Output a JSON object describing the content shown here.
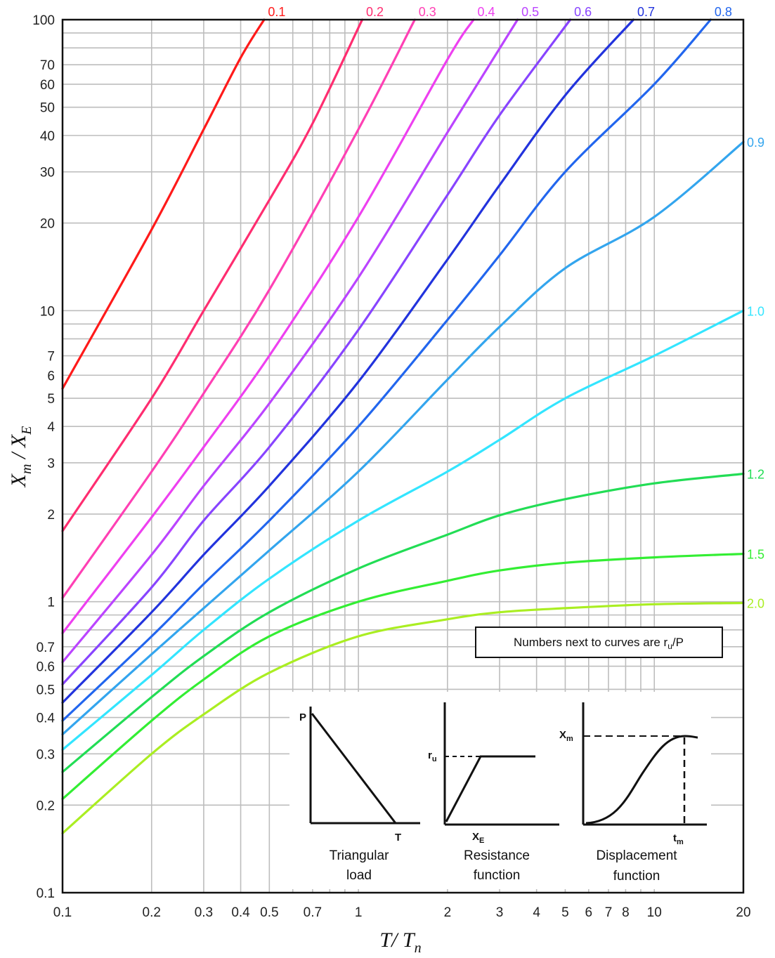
{
  "chart_data": {
    "type": "line",
    "xlabel": "T/ T_n",
    "ylabel": "X_m / X_E",
    "xscale": "log",
    "yscale": "log",
    "xlim": [
      0.1,
      20
    ],
    "ylim": [
      0.1,
      100
    ],
    "grid": true,
    "x_ticks": [
      "0.1",
      "0.2",
      "0.3",
      "0.4",
      "0.5",
      "0.7",
      "1",
      "2",
      "3",
      "4",
      "5",
      "6",
      "7",
      "8",
      "10",
      "20"
    ],
    "y_ticks": [
      "0.1",
      "0.2",
      "0.3",
      "0.4",
      "0.5",
      "0.6",
      "0.7",
      "1",
      "2",
      "3",
      "4",
      "5",
      "6",
      "7",
      "10",
      "20",
      "30",
      "40",
      "50",
      "60",
      "70",
      "100"
    ],
    "annotation": "Numbers next to curves are r_u/P",
    "series": [
      {
        "name": "0.1",
        "color": "#ff1a1a",
        "x": [
          0.1,
          0.2,
          0.3,
          0.4,
          0.48
        ],
        "y": [
          5.4,
          19,
          42,
          74,
          100
        ]
      },
      {
        "name": "0.2",
        "color": "#ff2d70",
        "x": [
          0.1,
          0.2,
          0.3,
          0.5,
          0.7,
          1.03
        ],
        "y": [
          1.75,
          5.0,
          10,
          24,
          44,
          100
        ]
      },
      {
        "name": "0.3",
        "color": "#ff40b4",
        "x": [
          0.1,
          0.2,
          0.3,
          0.5,
          1.0,
          1.55
        ],
        "y": [
          1.03,
          2.8,
          5.2,
          11.8,
          42,
          100
        ]
      },
      {
        "name": "0.4",
        "color": "#ee40f0",
        "x": [
          0.1,
          0.2,
          0.3,
          0.5,
          1.0,
          2.0,
          2.45
        ],
        "y": [
          0.78,
          1.95,
          3.4,
          7.0,
          21,
          73,
          100
        ]
      },
      {
        "name": "0.5",
        "color": "#bb44ff",
        "x": [
          0.1,
          0.2,
          0.3,
          0.5,
          1.0,
          2.0,
          3.45
        ],
        "y": [
          0.62,
          1.45,
          2.5,
          4.8,
          13,
          41,
          100
        ]
      },
      {
        "name": "0.6",
        "color": "#8844ff",
        "x": [
          0.1,
          0.2,
          0.3,
          0.5,
          1.0,
          2.0,
          3.0,
          5.2
        ],
        "y": [
          0.52,
          1.12,
          1.9,
          3.4,
          8.6,
          25,
          47,
          100
        ]
      },
      {
        "name": "0.7",
        "color": "#2233dd",
        "x": [
          0.1,
          0.2,
          0.3,
          0.5,
          1.0,
          2.0,
          3.0,
          5.0,
          8.5
        ],
        "y": [
          0.45,
          0.92,
          1.45,
          2.5,
          5.7,
          15,
          27,
          55,
          100
        ]
      },
      {
        "name": "0.8",
        "color": "#2266ee",
        "x": [
          0.1,
          0.2,
          0.3,
          0.5,
          1.0,
          2.0,
          3.0,
          5.0,
          10,
          15.5
        ],
        "y": [
          0.39,
          0.76,
          1.15,
          1.9,
          4.0,
          9.3,
          15.5,
          30,
          60,
          100
        ]
      },
      {
        "name": "0.9",
        "color": "#33a5ee",
        "x": [
          0.1,
          0.2,
          0.3,
          0.5,
          1.0,
          2.0,
          3.0,
          5.0,
          10,
          20
        ],
        "y": [
          0.35,
          0.66,
          0.95,
          1.5,
          2.8,
          5.8,
          8.8,
          14,
          21,
          38
        ]
      },
      {
        "name": "1.0",
        "color": "#33e5ff",
        "x": [
          0.1,
          0.2,
          0.3,
          0.5,
          1.0,
          2.0,
          3.0,
          5.0,
          10,
          20
        ],
        "y": [
          0.31,
          0.56,
          0.8,
          1.2,
          1.9,
          2.8,
          3.6,
          5.0,
          7.0,
          10
        ]
      },
      {
        "name": "1.2",
        "color": "#22dd55",
        "x": [
          0.1,
          0.2,
          0.3,
          0.5,
          1.0,
          2.0,
          3.0,
          5.0,
          10,
          20
        ],
        "y": [
          0.26,
          0.47,
          0.65,
          0.92,
          1.3,
          1.7,
          1.98,
          2.25,
          2.55,
          2.75
        ]
      },
      {
        "name": "1.5",
        "color": "#33ee33",
        "x": [
          0.1,
          0.2,
          0.3,
          0.5,
          1.0,
          2.0,
          3.0,
          5.0,
          10,
          20
        ],
        "y": [
          0.21,
          0.39,
          0.54,
          0.76,
          1.0,
          1.18,
          1.28,
          1.36,
          1.42,
          1.46
        ]
      },
      {
        "name": "2.0",
        "color": "#aaee22",
        "x": [
          0.1,
          0.2,
          0.3,
          0.5,
          1.0,
          2.0,
          3.0,
          5.0,
          10,
          20
        ],
        "y": [
          0.16,
          0.3,
          0.41,
          0.57,
          0.76,
          0.87,
          0.92,
          0.95,
          0.98,
          0.99
        ]
      }
    ]
  },
  "inset": {
    "panels": [
      {
        "caption_line1": "Triangular",
        "caption_line2": "load",
        "labels": [
          "P",
          "T"
        ]
      },
      {
        "caption_line1": "Resistance",
        "caption_line2": "function",
        "labels": [
          "r_u",
          "X_E"
        ]
      },
      {
        "caption_line1": "Displacement",
        "caption_line2": "function",
        "labels": [
          "X_m",
          "t_m"
        ]
      }
    ]
  }
}
